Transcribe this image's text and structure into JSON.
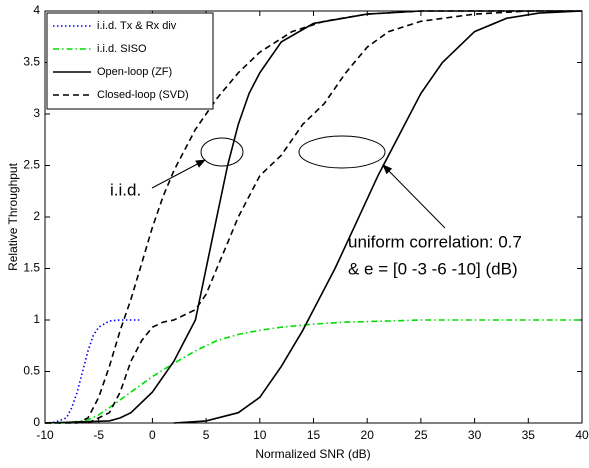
{
  "chart_data": {
    "type": "line",
    "xlabel": "Normalized SNR (dB)",
    "ylabel": "Relative Throughput",
    "xlim": [
      -10,
      40
    ],
    "ylim": [
      0,
      4
    ],
    "xticks": [
      -10,
      -5,
      0,
      5,
      10,
      15,
      20,
      25,
      30,
      35,
      40
    ],
    "yticks": [
      0,
      0.5,
      1,
      1.5,
      2,
      2.5,
      3,
      3.5,
      4
    ],
    "grid": false,
    "legend": "upper-left",
    "annotations": [
      "i.i.d.",
      "uniform correlation: 0.7",
      "& e = [0 -3 -6 -10] (dB)"
    ],
    "series": [
      {
        "name": "i.i.d. Tx & Rx div",
        "color": "#0000ff",
        "style": "dotted",
        "x": [
          -10,
          -9,
          -8,
          -7.5,
          -7,
          -6.5,
          -6,
          -5.5,
          -5,
          -4,
          -3,
          -2,
          -1
        ],
        "values": [
          0,
          0.01,
          0.05,
          0.15,
          0.3,
          0.5,
          0.7,
          0.85,
          0.93,
          0.99,
          1,
          1,
          1
        ]
      },
      {
        "name": "i.i.d. SISO",
        "color": "#00dd00",
        "style": "dashdot",
        "x": [
          -10,
          -8,
          -6,
          -5,
          -4,
          -2,
          0,
          2,
          4,
          6,
          8,
          10,
          12,
          15,
          18,
          22,
          25,
          40
        ],
        "values": [
          0,
          0,
          0.03,
          0.08,
          0.15,
          0.3,
          0.45,
          0.58,
          0.7,
          0.8,
          0.86,
          0.9,
          0.93,
          0.96,
          0.98,
          0.99,
          1,
          1
        ]
      },
      {
        "name": "Open-loop (ZF)",
        "color": "#000000",
        "style": "solid",
        "x": [
          -10,
          -4,
          -3,
          -2,
          0,
          2,
          3,
          4,
          5,
          6,
          7,
          8,
          9,
          10,
          12,
          15,
          20,
          25,
          40,
          null,
          2,
          5,
          8,
          10,
          12,
          14,
          15,
          17,
          19,
          21,
          23,
          25,
          27,
          30,
          33,
          36,
          40
        ],
        "values": [
          0,
          0.02,
          0.05,
          0.1,
          0.3,
          0.6,
          0.8,
          1,
          1.5,
          2,
          2.5,
          2.9,
          3.2,
          3.4,
          3.7,
          3.88,
          3.97,
          4,
          4,
          null,
          0,
          0.02,
          0.1,
          0.25,
          0.55,
          0.9,
          1.1,
          1.5,
          1.95,
          2.4,
          2.8,
          3.2,
          3.5,
          3.8,
          3.93,
          3.98,
          4
        ]
      },
      {
        "name": "Closed-loop (SVD)",
        "color": "#000000",
        "style": "dashed",
        "x": [
          -10,
          -7,
          -6,
          -5,
          -4,
          -3,
          -2,
          -1,
          0,
          1,
          2,
          4,
          6,
          8,
          10,
          13,
          16,
          20,
          25,
          40,
          null,
          -6,
          -4,
          -3,
          -2,
          -1,
          0,
          1,
          2,
          3,
          4,
          5,
          6,
          7,
          8,
          10,
          12,
          14,
          16,
          18,
          20,
          22,
          25,
          30,
          35,
          40
        ],
        "values": [
          0,
          0,
          0.05,
          0.25,
          0.55,
          0.9,
          1.2,
          1.55,
          1.9,
          2.2,
          2.45,
          2.85,
          3.15,
          3.4,
          3.6,
          3.8,
          3.9,
          3.97,
          4,
          4,
          null,
          0,
          0.1,
          0.3,
          0.6,
          0.8,
          0.93,
          0.98,
          1,
          1.05,
          1.1,
          1.25,
          1.5,
          1.75,
          2,
          2.4,
          2.6,
          2.9,
          3.1,
          3.4,
          3.65,
          3.8,
          3.9,
          3.97,
          4,
          4
        ]
      }
    ]
  }
}
